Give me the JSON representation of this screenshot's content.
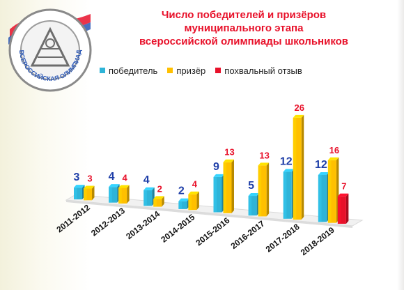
{
  "title_lines": [
    "Число победителей и призёров",
    "муниципального этапа",
    "всероссийской олимпиады школьников"
  ],
  "logo_text": "ВСЕРОССИЙСКАЯ ОЛИМПИАДА ШКОЛЬНИКОВ",
  "colors": {
    "winner": "#2eb4d8",
    "prize": "#ffc000",
    "commend": "#e8112a",
    "label_winner": "#1f3fa8",
    "label_other": "#e8112a"
  },
  "chart_data": {
    "type": "bar",
    "title": "Число победителей и призёров муниципального этапа всероссийской олимпиады школьников",
    "categories": [
      "2011-2012",
      "2012-2013",
      "2013-2014",
      "2014-2015",
      "2015-2016",
      "2016-2017",
      "2017-2018",
      "2018-2019"
    ],
    "series": [
      {
        "name": "победитель",
        "values": [
          3,
          4,
          4,
          2,
          9,
          5,
          12,
          12
        ]
      },
      {
        "name": "призёр",
        "values": [
          3,
          4,
          2,
          4,
          13,
          13,
          26,
          16
        ]
      },
      {
        "name": "похвальный отзыв",
        "values": [
          null,
          null,
          null,
          null,
          null,
          null,
          null,
          7
        ]
      }
    ],
    "ylim": [
      0,
      28
    ],
    "grid": false,
    "legend": "top-left",
    "data_labels": true
  }
}
